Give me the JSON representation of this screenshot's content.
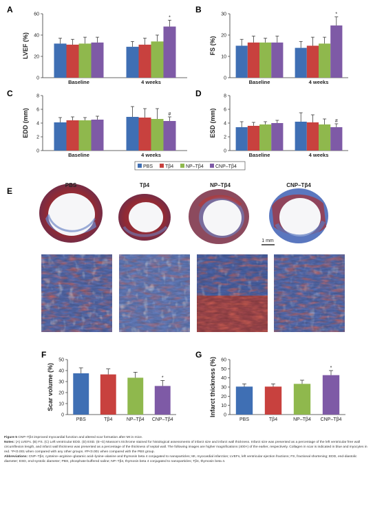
{
  "colors": {
    "pbs": "#3f6fb4",
    "tb4": "#c8413e",
    "np": "#8fb84d",
    "cnp": "#7e5aa6"
  },
  "legend": [
    "PBS",
    "Tβ4",
    "NP–Tβ4",
    "CNP–Tβ4"
  ],
  "chart_data": [
    {
      "panel": "A",
      "type": "bar",
      "ylabel": "LVEF (%)",
      "ylim": [
        0,
        60
      ],
      "yticks": [
        0,
        20,
        40,
        60
      ],
      "categories": [
        "Baseline",
        "4 weeks"
      ],
      "series": [
        {
          "name": "PBS",
          "values": [
            32,
            29
          ],
          "err": [
            5,
            5
          ]
        },
        {
          "name": "Tβ4",
          "values": [
            31,
            31
          ],
          "err": [
            5,
            6
          ]
        },
        {
          "name": "NP–Tβ4",
          "values": [
            32,
            34
          ],
          "err": [
            6,
            6
          ]
        },
        {
          "name": "CNP–Tβ4",
          "values": [
            33,
            48
          ],
          "err": [
            5,
            6
          ]
        }
      ],
      "annotations": [
        {
          "text": "*",
          "category": 1,
          "series": 3
        }
      ]
    },
    {
      "panel": "B",
      "type": "bar",
      "ylabel": "FS (%)",
      "ylim": [
        0,
        30
      ],
      "yticks": [
        0,
        10,
        20,
        30
      ],
      "categories": [
        "Baseline",
        "4 weeks"
      ],
      "series": [
        {
          "name": "PBS",
          "values": [
            15,
            14
          ],
          "err": [
            3,
            3
          ]
        },
        {
          "name": "Tβ4",
          "values": [
            16.5,
            15
          ],
          "err": [
            3,
            4
          ]
        },
        {
          "name": "NP–Tβ4",
          "values": [
            16.5,
            16
          ],
          "err": [
            2,
            3
          ]
        },
        {
          "name": "CNP–Tβ4",
          "values": [
            16.5,
            24.5
          ],
          "err": [
            3,
            4
          ]
        }
      ],
      "annotations": [
        {
          "text": "*",
          "category": 1,
          "series": 3
        }
      ]
    },
    {
      "panel": "C",
      "type": "bar",
      "ylabel": "EDD (mm)",
      "ylim": [
        0,
        8
      ],
      "yticks": [
        0,
        2,
        4,
        6,
        8
      ],
      "categories": [
        "Baseline",
        "4 weeks"
      ],
      "series": [
        {
          "name": "PBS",
          "values": [
            4.1,
            4.9
          ],
          "err": [
            0.7,
            1.5
          ]
        },
        {
          "name": "Tβ4",
          "values": [
            4.4,
            4.8
          ],
          "err": [
            0.5,
            1.3
          ]
        },
        {
          "name": "NP–Tβ4",
          "values": [
            4.4,
            4.6
          ],
          "err": [
            0.4,
            1.5
          ]
        },
        {
          "name": "CNP–Tβ4",
          "values": [
            4.5,
            4.3
          ],
          "err": [
            0.5,
            0.6
          ]
        }
      ],
      "annotations": [
        {
          "text": "#",
          "category": 1,
          "series": 3
        }
      ]
    },
    {
      "panel": "D",
      "type": "bar",
      "ylabel": "ESD (mm)",
      "ylim": [
        0,
        8
      ],
      "yticks": [
        0,
        2,
        4,
        6,
        8
      ],
      "categories": [
        "Baseline",
        "4 weeks"
      ],
      "series": [
        {
          "name": "PBS",
          "values": [
            3.4,
            4.2
          ],
          "err": [
            0.8,
            1.3
          ]
        },
        {
          "name": "Tβ4",
          "values": [
            3.6,
            4.1
          ],
          "err": [
            0.5,
            1.1
          ]
        },
        {
          "name": "NP–Tβ4",
          "values": [
            3.8,
            3.8
          ],
          "err": [
            0.4,
            0.8
          ]
        },
        {
          "name": "CNP–Tβ4",
          "values": [
            4.0,
            3.4
          ],
          "err": [
            0.4,
            0.5
          ]
        }
      ],
      "annotations": [
        {
          "text": "#",
          "category": 1,
          "series": 3
        }
      ]
    },
    {
      "panel": "F",
      "type": "bar",
      "ylabel": "Scar volume (%)",
      "ylim": [
        0,
        50
      ],
      "yticks": [
        0,
        10,
        20,
        30,
        40,
        50
      ],
      "categories": [
        "PBS",
        "Tβ4",
        "NP–Tβ4",
        "CNP–Tβ4"
      ],
      "values": [
        37.5,
        36.5,
        33.5,
        26
      ],
      "err": [
        5,
        5,
        5,
        5
      ],
      "annotations": [
        {
          "text": "*",
          "index": 3
        }
      ]
    },
    {
      "panel": "G",
      "type": "bar",
      "ylabel": "Infarct thickness (%)",
      "ylim": [
        0,
        60
      ],
      "yticks": [
        0,
        10,
        20,
        30,
        40,
        50,
        60
      ],
      "categories": [
        "PBS",
        "Tβ4",
        "NP–Tβ4",
        "CNP–Tβ4"
      ],
      "values": [
        30.5,
        30.5,
        33.5,
        43
      ],
      "err": [
        3,
        3,
        4,
        5
      ],
      "annotations": [
        {
          "text": "*",
          "index": 3
        }
      ]
    }
  ],
  "histology": {
    "panel": "E",
    "labels": [
      "PBS",
      "Tβ4",
      "NP–Tβ4",
      "CNP–Tβ4"
    ],
    "scale_bar": "1 mm"
  },
  "caption": {
    "title_lead": "Figure 5",
    "title": " CNP–Tβ4 improved myocardial function and altered scar formation after MI in mice.",
    "notes_lead": "Notes:",
    "notes": " (A) LVEFs. (B) FS. (C) Left ventricular EDD. (D) ESD. (E–G) Masson's trichrome stained for histological assessments of infarct size and infarct wall thickness. Infarct size was presented as a percentage of the left ventricular free wall circumflexion length, and infarct wall thickness was presented as a percentage of the thickness of septal wall. The following images are higher magnifications (400×) of the earlier, respectively. Collagen in scar is indicated in blue and myocytes in red. *P<0.001 when compared with any other groups. #P<0.001 when compared with the PBS group.",
    "abbr_lead": "Abbreviations:",
    "abbr": " CNP–Tβ4, cysteine–arginine–glutamic acid–lysine–alanine and thymosin beta 4 conjugated to nanoparticles; MI, myocardial infarction; LVEFs, left ventricular ejection fractions; FS, fractional shortening; EDD, end-diastolic diameter; ESD, end-systolic diameter; PBS, phosphate-buffered saline; NP–Tβ4, thymosin beta 4 conjugated to nanoparticles; Tβ4, thymosin beta 4."
  }
}
